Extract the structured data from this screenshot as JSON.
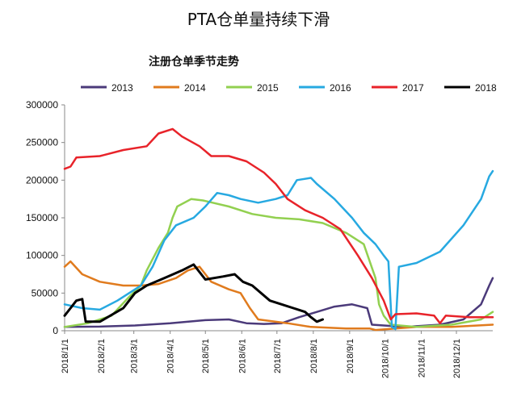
{
  "page": {
    "title": "PTA仓单量持续下滑"
  },
  "chart_data": {
    "type": "line",
    "title": "注册仓单季节走势",
    "xlabel": "",
    "ylabel": "",
    "ylim": [
      0,
      300000
    ],
    "yticks": [
      "0",
      "50000",
      "100000",
      "150000",
      "200000",
      "250000",
      "300000"
    ],
    "xticks": [
      "2018/1/1",
      "2018/2/1",
      "2018/3/1",
      "2018/4/1",
      "2018/5/1",
      "2018/6/1",
      "2018/7/1",
      "2018/8/1",
      "2018/9/1",
      "2018/10/1",
      "2018/11/1",
      "2018/12/1"
    ],
    "x_domain": [
      0,
      365
    ],
    "legend_position": "top",
    "series": [
      {
        "name": "2013",
        "color": "#4b3a7a",
        "points": [
          [
            0,
            5000
          ],
          [
            30,
            5500
          ],
          [
            60,
            7000
          ],
          [
            90,
            10000
          ],
          [
            120,
            14000
          ],
          [
            140,
            15000
          ],
          [
            155,
            10000
          ],
          [
            170,
            9000
          ],
          [
            185,
            10000
          ],
          [
            200,
            18000
          ],
          [
            215,
            25000
          ],
          [
            230,
            32000
          ],
          [
            245,
            35000
          ],
          [
            258,
            30000
          ],
          [
            262,
            8000
          ],
          [
            290,
            5000
          ],
          [
            320,
            8000
          ],
          [
            340,
            15000
          ],
          [
            355,
            35000
          ],
          [
            362,
            60000
          ],
          [
            365,
            70000
          ]
        ]
      },
      {
        "name": "2014",
        "color": "#e07b1e",
        "points": [
          [
            0,
            85000
          ],
          [
            5,
            92000
          ],
          [
            15,
            75000
          ],
          [
            30,
            65000
          ],
          [
            50,
            60000
          ],
          [
            65,
            60000
          ],
          [
            80,
            62000
          ],
          [
            95,
            70000
          ],
          [
            105,
            80000
          ],
          [
            115,
            85000
          ],
          [
            125,
            65000
          ],
          [
            140,
            55000
          ],
          [
            150,
            50000
          ],
          [
            158,
            30000
          ],
          [
            165,
            15000
          ],
          [
            190,
            10000
          ],
          [
            210,
            5000
          ],
          [
            240,
            3000
          ],
          [
            260,
            3000
          ],
          [
            265,
            1000
          ],
          [
            300,
            5000
          ],
          [
            330,
            5000
          ],
          [
            365,
            8000
          ]
        ]
      },
      {
        "name": "2015",
        "color": "#92d050",
        "points": [
          [
            0,
            5000
          ],
          [
            20,
            10000
          ],
          [
            40,
            20000
          ],
          [
            55,
            45000
          ],
          [
            65,
            60000
          ],
          [
            70,
            80000
          ],
          [
            80,
            110000
          ],
          [
            88,
            130000
          ],
          [
            92,
            150000
          ],
          [
            96,
            165000
          ],
          [
            108,
            175000
          ],
          [
            118,
            173000
          ],
          [
            140,
            165000
          ],
          [
            160,
            155000
          ],
          [
            180,
            150000
          ],
          [
            200,
            148000
          ],
          [
            220,
            143000
          ],
          [
            240,
            130000
          ],
          [
            255,
            115000
          ],
          [
            265,
            70000
          ],
          [
            268,
            35000
          ],
          [
            272,
            20000
          ],
          [
            278,
            8000
          ],
          [
            300,
            5000
          ],
          [
            330,
            8000
          ],
          [
            355,
            15000
          ],
          [
            365,
            25000
          ]
        ]
      },
      {
        "name": "2016",
        "color": "#27a9e1",
        "points": [
          [
            0,
            35000
          ],
          [
            15,
            30000
          ],
          [
            30,
            28000
          ],
          [
            45,
            40000
          ],
          [
            55,
            50000
          ],
          [
            65,
            60000
          ],
          [
            75,
            85000
          ],
          [
            85,
            120000
          ],
          [
            95,
            140000
          ],
          [
            110,
            150000
          ],
          [
            120,
            165000
          ],
          [
            130,
            183000
          ],
          [
            140,
            180000
          ],
          [
            150,
            175000
          ],
          [
            165,
            170000
          ],
          [
            180,
            175000
          ],
          [
            190,
            180000
          ],
          [
            198,
            200000
          ],
          [
            210,
            203000
          ],
          [
            215,
            195000
          ],
          [
            230,
            175000
          ],
          [
            245,
            150000
          ],
          [
            255,
            130000
          ],
          [
            265,
            115000
          ],
          [
            272,
            100000
          ],
          [
            276,
            92000
          ],
          [
            279,
            5000
          ],
          [
            282,
            2000
          ],
          [
            285,
            85000
          ],
          [
            300,
            90000
          ],
          [
            320,
            105000
          ],
          [
            340,
            140000
          ],
          [
            355,
            175000
          ],
          [
            362,
            205000
          ],
          [
            365,
            212000
          ]
        ]
      },
      {
        "name": "2017",
        "color": "#e8232a",
        "points": [
          [
            0,
            215000
          ],
          [
            5,
            218000
          ],
          [
            10,
            230000
          ],
          [
            30,
            232000
          ],
          [
            50,
            240000
          ],
          [
            70,
            245000
          ],
          [
            80,
            262000
          ],
          [
            92,
            268000
          ],
          [
            100,
            258000
          ],
          [
            115,
            245000
          ],
          [
            125,
            232000
          ],
          [
            140,
            232000
          ],
          [
            155,
            225000
          ],
          [
            170,
            210000
          ],
          [
            180,
            195000
          ],
          [
            190,
            175000
          ],
          [
            205,
            160000
          ],
          [
            220,
            150000
          ],
          [
            235,
            135000
          ],
          [
            250,
            100000
          ],
          [
            262,
            70000
          ],
          [
            272,
            40000
          ],
          [
            278,
            15000
          ],
          [
            282,
            22000
          ],
          [
            300,
            23000
          ],
          [
            315,
            20000
          ],
          [
            320,
            10000
          ],
          [
            325,
            20000
          ],
          [
            345,
            18000
          ],
          [
            365,
            18000
          ]
        ]
      },
      {
        "name": "2018",
        "color": "#000000",
        "points": [
          [
            0,
            20000
          ],
          [
            5,
            30000
          ],
          [
            10,
            40000
          ],
          [
            15,
            42000
          ],
          [
            18,
            12000
          ],
          [
            30,
            12000
          ],
          [
            50,
            30000
          ],
          [
            60,
            50000
          ],
          [
            70,
            60000
          ],
          [
            85,
            70000
          ],
          [
            100,
            80000
          ],
          [
            110,
            88000
          ],
          [
            120,
            68000
          ],
          [
            135,
            72000
          ],
          [
            145,
            75000
          ],
          [
            152,
            65000
          ],
          [
            160,
            60000
          ],
          [
            175,
            40000
          ],
          [
            185,
            35000
          ],
          [
            195,
            30000
          ],
          [
            205,
            25000
          ],
          [
            210,
            18000
          ],
          [
            215,
            12000
          ],
          [
            220,
            15000
          ]
        ]
      }
    ]
  }
}
